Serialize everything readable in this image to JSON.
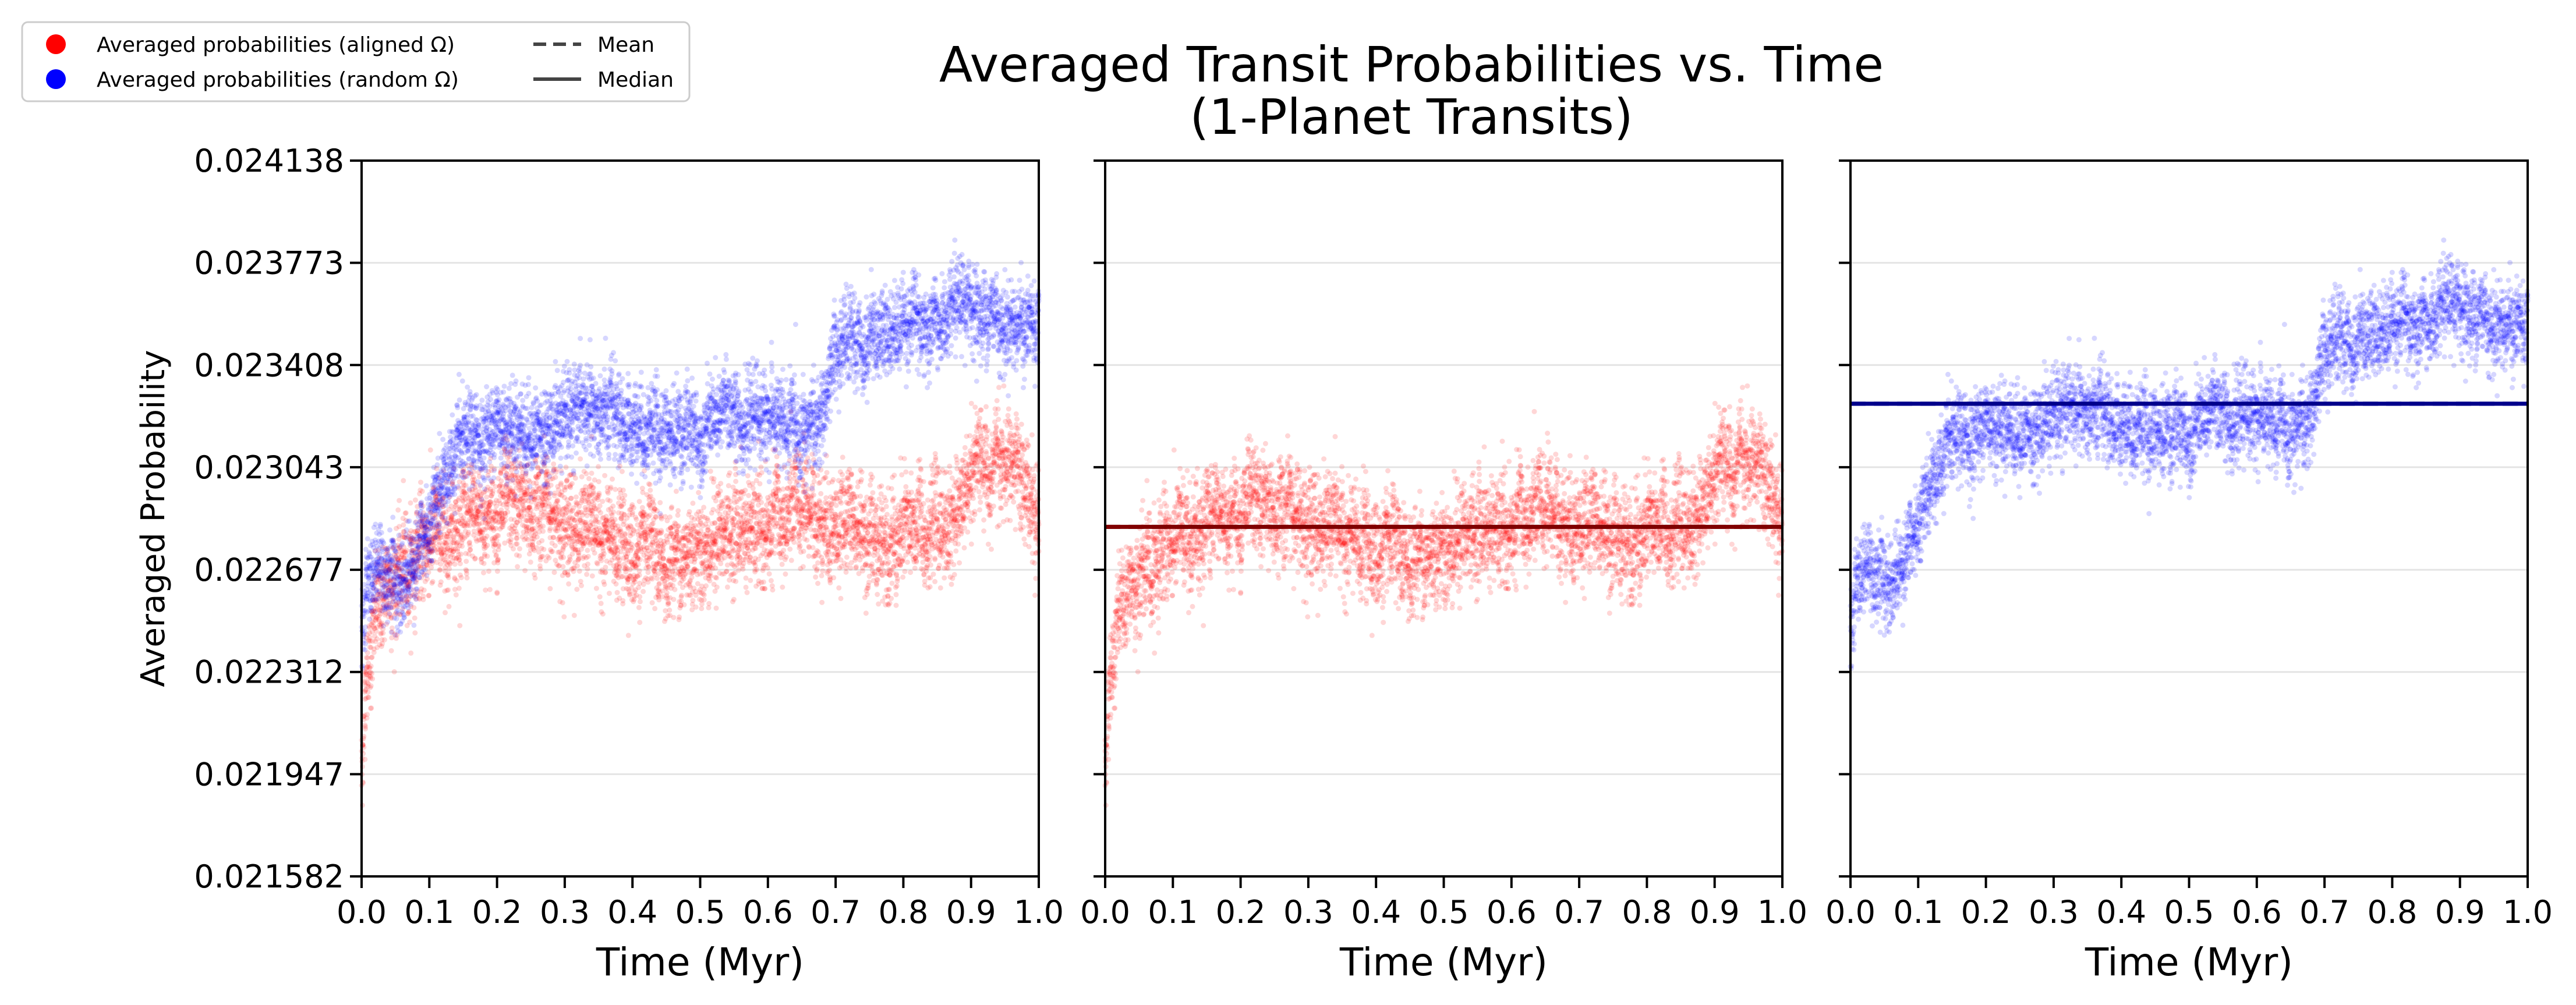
{
  "chart_data": {
    "type": "scatter",
    "title": "Averaged Transit Probabilities vs. Time",
    "subtitle": "(1-Planet Transits)",
    "ylabel": "Averaged Probability",
    "xlabel": "Time (Myr)",
    "xlim": [
      0.0,
      1.0
    ],
    "ylim": [
      0.021582,
      0.024138
    ],
    "x_ticks": [
      "0.0",
      "0.1",
      "0.2",
      "0.3",
      "0.4",
      "0.5",
      "0.6",
      "0.7",
      "0.8",
      "0.9",
      "1.0"
    ],
    "y_ticks": [
      "0.021582",
      "0.021947",
      "0.022312",
      "0.022677",
      "0.023043",
      "0.023408",
      "0.023773",
      "0.024138"
    ],
    "grid": "horizontal",
    "legend": {
      "placement": "top-left",
      "entries": [
        {
          "label": "Averaged probabilities (aligned Ω)",
          "marker": "dot",
          "color": "#ff0000"
        },
        {
          "label": "Averaged probabilities (random Ω)",
          "marker": "dot",
          "color": "#0000ff"
        },
        {
          "label": "Mean",
          "marker": "dashed-line",
          "color": "#444444"
        },
        {
          "label": "Median",
          "marker": "solid-line",
          "color": "#444444"
        }
      ]
    },
    "series": [
      {
        "key": "aligned",
        "color": "#ff0000",
        "trend": {
          "x": [
            0.0,
            0.005,
            0.01,
            0.02,
            0.04,
            0.06,
            0.08,
            0.1,
            0.12,
            0.15,
            0.2,
            0.25,
            0.3,
            0.35,
            0.4,
            0.45,
            0.5,
            0.55,
            0.6,
            0.65,
            0.7,
            0.75,
            0.8,
            0.85,
            0.88,
            0.9,
            0.92,
            0.95,
            0.98,
            1.0
          ],
          "y": [
            0.02195,
            0.02222,
            0.02238,
            0.02252,
            0.02262,
            0.02268,
            0.02272,
            0.02276,
            0.0228,
            0.02284,
            0.02288,
            0.0229,
            0.02285,
            0.0228,
            0.02274,
            0.0227,
            0.02276,
            0.02282,
            0.0228,
            0.0229,
            0.02283,
            0.02278,
            0.0228,
            0.02282,
            0.02285,
            0.023,
            0.02308,
            0.02304,
            0.023,
            0.02282
          ]
        },
        "scatter_sd": 0.00012,
        "mean": 0.02283,
        "median": 0.02283
      },
      {
        "key": "random",
        "color": "#0000ff",
        "trend": {
          "x": [
            0.0,
            0.01,
            0.02,
            0.04,
            0.06,
            0.08,
            0.1,
            0.12,
            0.15,
            0.2,
            0.25,
            0.3,
            0.35,
            0.4,
            0.45,
            0.5,
            0.55,
            0.6,
            0.65,
            0.68,
            0.7,
            0.75,
            0.8,
            0.85,
            0.9,
            0.95,
            1.0
          ],
          "y": [
            0.02245,
            0.02268,
            0.02272,
            0.02268,
            0.02262,
            0.02275,
            0.02285,
            0.02296,
            0.0231,
            0.0232,
            0.02318,
            0.02322,
            0.02325,
            0.0232,
            0.02318,
            0.02315,
            0.02325,
            0.0232,
            0.02318,
            0.0232,
            0.02345,
            0.02352,
            0.02358,
            0.02355,
            0.02362,
            0.02358,
            0.02352
          ]
        },
        "scatter_sd": 0.0001,
        "mean": 0.02327,
        "median": 0.02327
      }
    ],
    "panels": [
      {
        "name": "combined",
        "series": [
          "aligned",
          "random"
        ],
        "show_yticklabels": true,
        "show_ylabel": true
      },
      {
        "name": "aligned",
        "series": [
          "aligned"
        ],
        "show_yticklabels": false,
        "show_ylabel": false,
        "lines": [
          {
            "series": "aligned",
            "color": "#800000"
          }
        ]
      },
      {
        "name": "random",
        "series": [
          "random"
        ],
        "show_yticklabels": false,
        "show_ylabel": false,
        "lines": [
          {
            "series": "random",
            "color": "#00008b"
          }
        ]
      }
    ]
  }
}
